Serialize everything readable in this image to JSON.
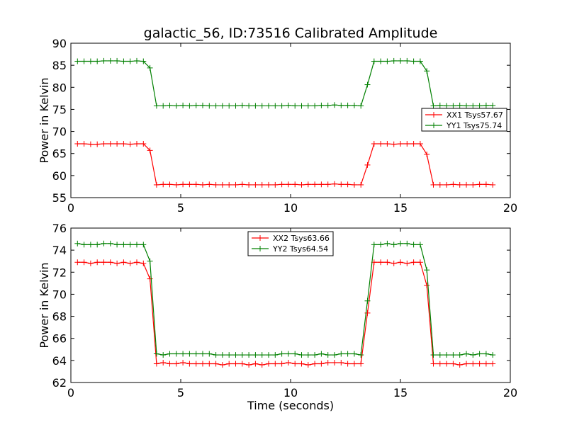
{
  "chart_data": [
    {
      "type": "line",
      "title": "galactic_56, ID:73516 Calibrated Amplitude",
      "xlabel": "",
      "ylabel": "Power in Kelvin",
      "xlim": [
        0,
        20
      ],
      "ylim": [
        55,
        90
      ],
      "xticks": [
        "0",
        "5",
        "10",
        "15",
        "20"
      ],
      "yticks": [
        "55",
        "60",
        "65",
        "70",
        "75",
        "80",
        "85",
        "90"
      ],
      "grid": false,
      "legend_position": "center-right",
      "x": [
        0.3,
        0.6,
        0.9,
        1.2,
        1.5,
        1.8,
        2.1,
        2.4,
        2.7,
        3.0,
        3.3,
        3.6,
        3.9,
        4.2,
        4.5,
        4.8,
        5.1,
        5.4,
        5.7,
        6.0,
        6.3,
        6.6,
        6.9,
        7.2,
        7.5,
        7.8,
        8.1,
        8.4,
        8.7,
        9.0,
        9.3,
        9.6,
        9.9,
        10.2,
        10.5,
        10.8,
        11.1,
        11.4,
        11.7,
        12.0,
        12.3,
        12.6,
        12.9,
        13.2,
        13.5,
        13.8,
        14.1,
        14.4,
        14.7,
        15.0,
        15.3,
        15.6,
        15.9,
        16.2,
        16.5,
        16.8,
        17.1,
        17.4,
        17.7,
        18.0,
        18.3,
        18.6,
        18.9,
        19.2
      ],
      "series": [
        {
          "name": "XX1 Tsys57.67",
          "color": "#ff0000",
          "values": [
            67.2,
            67.2,
            67.1,
            67.1,
            67.2,
            67.2,
            67.2,
            67.2,
            67.1,
            67.2,
            67.2,
            65.7,
            57.9,
            58.0,
            58.0,
            57.9,
            58.0,
            58.0,
            58.0,
            57.9,
            58.0,
            57.9,
            57.9,
            57.9,
            57.9,
            58.0,
            57.9,
            57.9,
            57.9,
            57.9,
            57.9,
            58.0,
            58.0,
            58.0,
            57.9,
            58.0,
            58.0,
            58.0,
            58.0,
            58.1,
            58.0,
            58.0,
            57.9,
            57.9,
            62.4,
            67.2,
            67.2,
            67.2,
            67.1,
            67.2,
            67.2,
            67.2,
            67.2,
            64.8,
            57.9,
            57.9,
            57.9,
            58.0,
            57.9,
            57.9,
            57.9,
            58.0,
            58.0,
            57.9
          ]
        },
        {
          "name": "YY1 Tsys75.74",
          "color": "#008000",
          "values": [
            85.9,
            85.9,
            85.9,
            85.9,
            86.0,
            86.0,
            86.0,
            85.9,
            85.9,
            86.0,
            85.9,
            84.4,
            75.8,
            75.8,
            75.9,
            75.8,
            75.9,
            75.8,
            75.9,
            75.9,
            75.8,
            75.8,
            75.8,
            75.8,
            75.8,
            75.9,
            75.8,
            75.8,
            75.8,
            75.8,
            75.8,
            75.8,
            75.9,
            75.8,
            75.8,
            75.8,
            75.8,
            75.9,
            75.9,
            76.0,
            75.9,
            75.9,
            75.9,
            75.8,
            80.6,
            85.9,
            85.9,
            85.9,
            86.0,
            86.0,
            86.0,
            85.9,
            85.9,
            83.7,
            75.8,
            75.9,
            75.8,
            75.8,
            75.9,
            75.8,
            75.8,
            75.8,
            75.9,
            75.9
          ]
        }
      ]
    },
    {
      "type": "line",
      "title": "",
      "xlabel": "Time (seconds)",
      "ylabel": "Power in Kelvin",
      "xlim": [
        0,
        20
      ],
      "ylim": [
        62,
        76
      ],
      "xticks": [
        "0",
        "5",
        "10",
        "15",
        "20"
      ],
      "yticks": [
        "62",
        "64",
        "66",
        "68",
        "70",
        "72",
        "74",
        "76"
      ],
      "grid": false,
      "legend_position": "top-center",
      "x": [
        0.3,
        0.6,
        0.9,
        1.2,
        1.5,
        1.8,
        2.1,
        2.4,
        2.7,
        3.0,
        3.3,
        3.6,
        3.9,
        4.2,
        4.5,
        4.8,
        5.1,
        5.4,
        5.7,
        6.0,
        6.3,
        6.6,
        6.9,
        7.2,
        7.5,
        7.8,
        8.1,
        8.4,
        8.7,
        9.0,
        9.3,
        9.6,
        9.9,
        10.2,
        10.5,
        10.8,
        11.1,
        11.4,
        11.7,
        12.0,
        12.3,
        12.6,
        12.9,
        13.2,
        13.5,
        13.8,
        14.1,
        14.4,
        14.7,
        15.0,
        15.3,
        15.6,
        15.9,
        16.2,
        16.5,
        16.8,
        17.1,
        17.4,
        17.7,
        18.0,
        18.3,
        18.6,
        18.9,
        19.2
      ],
      "series": [
        {
          "name": "XX2 Tsys63.66",
          "color": "#ff0000",
          "values": [
            72.9,
            72.9,
            72.8,
            72.9,
            72.9,
            72.9,
            72.8,
            72.9,
            72.8,
            72.9,
            72.8,
            71.4,
            63.7,
            63.8,
            63.7,
            63.7,
            63.8,
            63.7,
            63.7,
            63.7,
            63.7,
            63.7,
            63.6,
            63.7,
            63.7,
            63.7,
            63.6,
            63.7,
            63.6,
            63.7,
            63.7,
            63.7,
            63.8,
            63.7,
            63.7,
            63.6,
            63.7,
            63.7,
            63.8,
            63.8,
            63.8,
            63.7,
            63.7,
            63.7,
            68.3,
            72.9,
            72.9,
            72.9,
            72.8,
            72.9,
            72.8,
            72.9,
            72.9,
            70.8,
            63.7,
            63.7,
            63.7,
            63.7,
            63.6,
            63.7,
            63.7,
            63.7,
            63.7,
            63.7
          ]
        },
        {
          "name": "YY2 Tsys64.54",
          "color": "#008000",
          "values": [
            74.6,
            74.5,
            74.5,
            74.5,
            74.6,
            74.6,
            74.5,
            74.5,
            74.5,
            74.5,
            74.5,
            73.0,
            64.6,
            64.5,
            64.6,
            64.6,
            64.6,
            64.6,
            64.6,
            64.6,
            64.6,
            64.5,
            64.5,
            64.5,
            64.5,
            64.5,
            64.5,
            64.5,
            64.5,
            64.5,
            64.5,
            64.6,
            64.6,
            64.6,
            64.5,
            64.5,
            64.5,
            64.6,
            64.5,
            64.5,
            64.6,
            64.6,
            64.6,
            64.5,
            69.4,
            74.5,
            74.5,
            74.6,
            74.5,
            74.6,
            74.6,
            74.5,
            74.5,
            72.2,
            64.5,
            64.5,
            64.5,
            64.5,
            64.5,
            64.6,
            64.5,
            64.6,
            64.6,
            64.5
          ]
        }
      ]
    }
  ]
}
